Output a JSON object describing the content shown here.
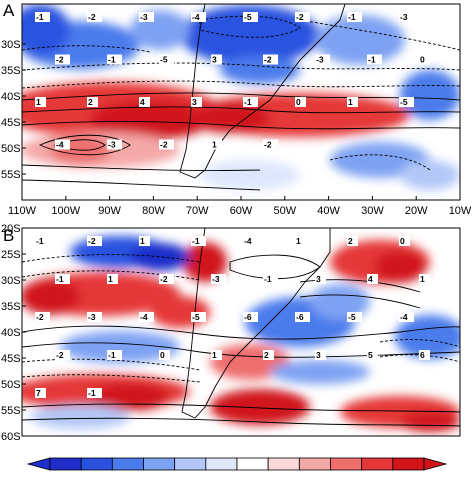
{
  "panels": [
    {
      "id": "A",
      "letter": "A",
      "lon_ticks": [
        "110W",
        "100W",
        "90W",
        "80W",
        "70W",
        "60W",
        "50W",
        "40W",
        "30W",
        "20W",
        "10W"
      ],
      "lat_ticks": [
        "30S",
        "35S",
        "40S",
        "45S",
        "50S",
        "55S"
      ],
      "contour_labels": [
        "-1",
        "-2",
        "-3",
        "-4",
        "-5",
        "-2",
        "-1",
        "-3",
        "-2",
        "-1",
        "-5",
        "3",
        "-2",
        "-3",
        "-1",
        "0",
        "1",
        "2",
        "4",
        "3",
        "-1",
        "0",
        "1",
        "-5",
        "-4",
        "-3",
        "-2",
        "1",
        "-2"
      ]
    },
    {
      "id": "B",
      "letter": "B",
      "lon_ticks": [],
      "lat_ticks": [
        "20S",
        "25S",
        "30S",
        "35S",
        "40S",
        "45S",
        "50S",
        "55S",
        "60S"
      ],
      "contour_labels": [
        "-1",
        "-2",
        "1",
        "-1",
        "-4",
        "1",
        "2",
        "0",
        "-1",
        "1",
        "-2",
        "-3",
        "-1",
        "3",
        "4",
        "1",
        "-2",
        "-3",
        "-4",
        "-5",
        "-6",
        "-6",
        "-5",
        "-4",
        "-2",
        "-1",
        "0",
        "1",
        "2",
        "3",
        "5",
        "6",
        "7",
        "-1"
      ]
    }
  ],
  "colorbar": {
    "colors": [
      "#1f2eca",
      "#2a52e0",
      "#4c7cec",
      "#7ea2f3",
      "#b3c8f8",
      "#dde7fc",
      "#ffffff",
      "#fbd9d9",
      "#f5a8a8",
      "#ef6e6e",
      "#e53737",
      "#d0151b"
    ]
  },
  "colors": {
    "land_outline": "#000000",
    "frame": "#000000"
  }
}
